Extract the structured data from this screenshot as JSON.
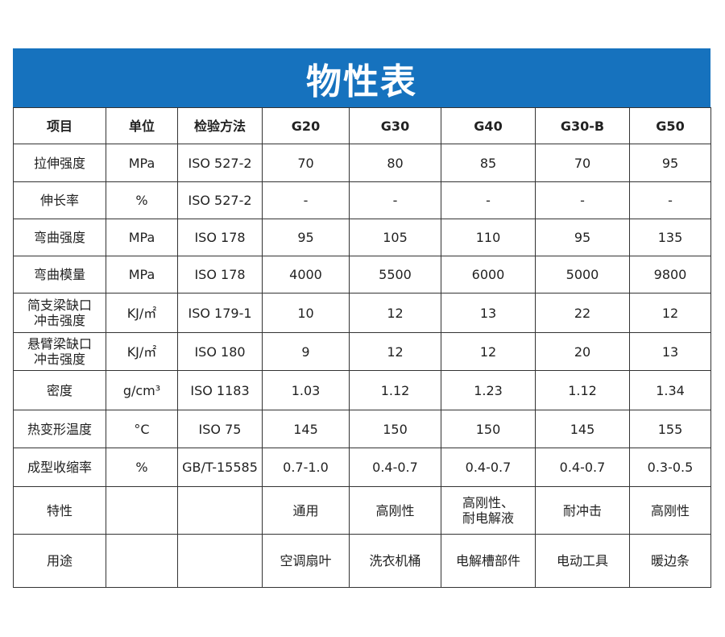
{
  "title": "物性表",
  "colors": {
    "header_bg": "#1672be",
    "header_text": "#ffffff",
    "border": "#333333"
  },
  "columns": [
    "项目",
    "单位",
    "检验方法",
    "G20",
    "G30",
    "G40",
    "G30-B",
    "G50"
  ],
  "rows": [
    {
      "item": "拉伸强度",
      "unit": "MPa",
      "method": "ISO 527-2",
      "values": [
        "70",
        "80",
        "85",
        "70",
        "95"
      ]
    },
    {
      "item": "伸长率",
      "unit": "%",
      "method": "ISO 527-2",
      "values": [
        "-",
        "-",
        "-",
        "-",
        "-"
      ]
    },
    {
      "item": "弯曲强度",
      "unit": "MPa",
      "method": "ISO 178",
      "values": [
        "95",
        "105",
        "110",
        "95",
        "135"
      ]
    },
    {
      "item": "弯曲模量",
      "unit": "MPa",
      "method": "ISO 178",
      "values": [
        "4000",
        "5500",
        "6000",
        "5000",
        "9800"
      ]
    },
    {
      "item": "简支梁缺口\n冲击强度",
      "unit": "KJ/㎡",
      "method": "ISO 179-1",
      "values": [
        "10",
        "12",
        "13",
        "22",
        "12"
      ]
    },
    {
      "item": "悬臂梁缺口\n冲击强度",
      "unit": "KJ/㎡",
      "method": "ISO 180",
      "values": [
        "9",
        "12",
        "12",
        "20",
        "13"
      ]
    },
    {
      "item": "密度",
      "unit": "g/cm³",
      "method": "ISO 1183",
      "values": [
        "1.03",
        "1.12",
        "1.23",
        "1.12",
        "1.34"
      ]
    },
    {
      "item": "热变形温度",
      "unit": "°C",
      "method": "ISO 75",
      "values": [
        "145",
        "150",
        "150",
        "145",
        "155"
      ]
    },
    {
      "item": "成型收缩率",
      "unit": "%",
      "method": "GB/T-15585",
      "values": [
        "0.7-1.0",
        "0.4-0.7",
        "0.4-0.7",
        "0.4-0.7",
        "0.3-0.5"
      ]
    },
    {
      "item": "特性",
      "unit": "",
      "method": "",
      "values": [
        "通用",
        "高刚性",
        "高刚性、\n耐电解液",
        "耐冲击",
        "高刚性"
      ]
    },
    {
      "item": "用途",
      "unit": "",
      "method": "",
      "values": [
        "空调扇叶",
        "洗衣机桶",
        "电解槽部件",
        "电动工具",
        "暖边条"
      ]
    }
  ]
}
